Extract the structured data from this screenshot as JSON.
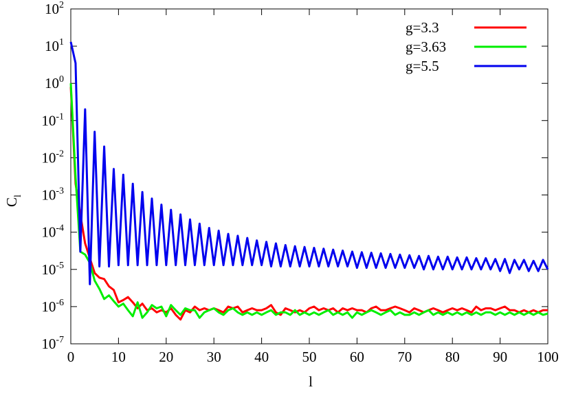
{
  "chart_data": {
    "type": "line",
    "xlabel": "l",
    "ylabel": "C",
    "ylabel_sub": "l",
    "log_y": true,
    "xlim": [
      0,
      100
    ],
    "xticks": [
      0,
      10,
      20,
      30,
      40,
      50,
      60,
      70,
      80,
      90,
      100
    ],
    "ylim": [
      1e-07,
      100
    ],
    "yticks": [
      {
        "value": 100,
        "label": "10",
        "sup": "2"
      },
      {
        "value": 10,
        "label": "10",
        "sup": "1"
      },
      {
        "value": 1,
        "label": "10",
        "sup": "0"
      },
      {
        "value": 0.1,
        "label": "10",
        "sup": "-1"
      },
      {
        "value": 0.01,
        "label": "10",
        "sup": "-2"
      },
      {
        "value": 0.001,
        "label": "10",
        "sup": "-3"
      },
      {
        "value": 0.0001,
        "label": "10",
        "sup": "-4"
      },
      {
        "value": 1e-05,
        "label": "10",
        "sup": "-5"
      },
      {
        "value": 1e-06,
        "label": "10",
        "sup": "-6"
      },
      {
        "value": 1e-07,
        "label": "10",
        "sup": "-7"
      }
    ],
    "legend": "top-right",
    "x": [
      0,
      1,
      2,
      3,
      4,
      5,
      6,
      7,
      8,
      9,
      10,
      11,
      12,
      13,
      14,
      15,
      16,
      17,
      18,
      19,
      20,
      21,
      22,
      23,
      24,
      25,
      26,
      27,
      28,
      29,
      30,
      31,
      32,
      33,
      34,
      35,
      36,
      37,
      38,
      39,
      40,
      41,
      42,
      43,
      44,
      45,
      46,
      47,
      48,
      49,
      50,
      51,
      52,
      53,
      54,
      55,
      56,
      57,
      58,
      59,
      60,
      61,
      62,
      63,
      64,
      65,
      66,
      67,
      68,
      69,
      70,
      71,
      72,
      73,
      74,
      75,
      76,
      77,
      78,
      79,
      80,
      81,
      82,
      83,
      84,
      85,
      86,
      87,
      88,
      89,
      90,
      91,
      92,
      93,
      94,
      95,
      96,
      97,
      98,
      99,
      100
    ],
    "series": [
      {
        "name": "g=3.3",
        "color": "#ff0000",
        "values": [
          0.8,
          0.002,
          0.0003,
          5e-05,
          2e-05,
          8e-06,
          6e-06,
          5.5e-06,
          3.5e-06,
          2.8e-06,
          1.3e-06,
          1.5e-06,
          1.8e-06,
          1.3e-06,
          9e-07,
          1.2e-06,
          8e-07,
          9e-07,
          7e-07,
          8e-07,
          7e-07,
          9e-07,
          6e-07,
          4.5e-07,
          8e-07,
          7e-07,
          1e-06,
          8e-07,
          9e-07,
          8e-07,
          9e-07,
          8e-07,
          7e-07,
          1e-06,
          9e-07,
          1e-06,
          7e-07,
          8e-07,
          9e-07,
          8e-07,
          8e-07,
          9e-07,
          1.1e-06,
          7e-07,
          6e-07,
          9e-07,
          8e-07,
          7e-07,
          8e-07,
          7e-07,
          9e-07,
          1e-06,
          8e-07,
          9e-07,
          8e-07,
          9e-07,
          7e-07,
          9e-07,
          8e-07,
          9e-07,
          8e-07,
          8e-07,
          7e-07,
          9e-07,
          1e-06,
          8e-07,
          8e-07,
          9e-07,
          1e-06,
          9e-07,
          8e-07,
          7e-07,
          9e-07,
          8e-07,
          7e-07,
          8e-07,
          9e-07,
          8e-07,
          7e-07,
          8e-07,
          9e-07,
          8e-07,
          9e-07,
          8e-07,
          7e-07,
          1e-06,
          8e-07,
          9e-07,
          9e-07,
          8e-07,
          9e-07,
          1e-06,
          8e-07,
          8e-07,
          7e-07,
          8e-07,
          7e-07,
          8e-07,
          7e-07,
          8e-07,
          8e-07
        ]
      },
      {
        "name": "g=3.63",
        "color": "#00ee00",
        "values": [
          1,
          0.003,
          3e-05,
          2.5e-05,
          1.5e-05,
          5e-06,
          3e-06,
          1.6e-06,
          2e-06,
          1.4e-06,
          1e-06,
          1.2e-06,
          8e-07,
          5.5e-07,
          1.3e-06,
          5e-07,
          7e-07,
          1.1e-06,
          9e-07,
          1e-06,
          5.5e-07,
          1.1e-06,
          8e-07,
          6e-07,
          9e-07,
          8e-07,
          8e-07,
          5e-07,
          7e-07,
          8e-07,
          9e-07,
          7e-07,
          6e-07,
          8e-07,
          9e-07,
          7e-07,
          6e-07,
          7e-07,
          6e-07,
          7e-07,
          6e-07,
          7e-07,
          8e-07,
          6e-07,
          7e-07,
          7e-07,
          6e-07,
          8e-07,
          6e-07,
          7e-07,
          6e-07,
          7e-07,
          6e-07,
          7e-07,
          8e-07,
          6e-07,
          7e-07,
          6e-07,
          7e-07,
          5e-07,
          7e-07,
          6e-07,
          7e-07,
          8e-07,
          7e-07,
          6e-07,
          7e-07,
          8e-07,
          6e-07,
          7e-07,
          6e-07,
          6e-07,
          7e-07,
          6e-07,
          7e-07,
          8e-07,
          6e-07,
          7e-07,
          6e-07,
          7e-07,
          6e-07,
          7e-07,
          6e-07,
          7e-07,
          6e-07,
          7e-07,
          6e-07,
          7e-07,
          7e-07,
          6e-07,
          7e-07,
          6e-07,
          7e-07,
          6e-07,
          7e-07,
          6e-07,
          7e-07,
          6e-07,
          7e-07,
          6e-07,
          6.5e-07
        ]
      },
      {
        "name": "g=5.5",
        "color": "#0000ee",
        "values": [
          13,
          3.5,
          3e-05,
          0.2,
          4e-06,
          0.05,
          1.2e-05,
          0.02,
          1.2e-05,
          0.005,
          1.3e-05,
          0.0035,
          1.3e-05,
          0.002,
          1.3e-05,
          0.0012,
          1.3e-05,
          0.0008,
          1.3e-05,
          0.00055,
          1.3e-05,
          0.0004,
          1.3e-05,
          0.0003,
          1.3e-05,
          0.00022,
          1.3e-05,
          0.00017,
          1.3e-05,
          0.00013,
          1.3e-05,
          0.00011,
          1.3e-05,
          9e-05,
          1.3e-05,
          8e-05,
          1.3e-05,
          7e-05,
          1.3e-05,
          6e-05,
          1.3e-05,
          5.5e-05,
          1.2e-05,
          5e-05,
          1.2e-05,
          4.5e-05,
          1.2e-05,
          4.2e-05,
          1.2e-05,
          4e-05,
          1.2e-05,
          3.8e-05,
          1.2e-05,
          3.6e-05,
          1.2e-05,
          3.4e-05,
          1.2e-05,
          3.2e-05,
          1.2e-05,
          3e-05,
          1.1e-05,
          2.9e-05,
          1.1e-05,
          2.8e-05,
          1.1e-05,
          2.7e-05,
          1.1e-05,
          2.6e-05,
          1.1e-05,
          2.5e-05,
          1.1e-05,
          2.4e-05,
          1.1e-05,
          2.3e-05,
          1e-05,
          2.3e-05,
          1e-05,
          2.2e-05,
          1e-05,
          2.2e-05,
          1e-05,
          2.1e-05,
          1e-05,
          2.1e-05,
          1e-05,
          2e-05,
          1e-05,
          2e-05,
          1e-05,
          1.9e-05,
          9e-06,
          1.9e-05,
          8e-06,
          1.8e-05,
          1e-05,
          1.8e-05,
          9e-06,
          1.7e-05,
          9e-06,
          1.8e-05,
          1e-05
        ]
      }
    ]
  }
}
